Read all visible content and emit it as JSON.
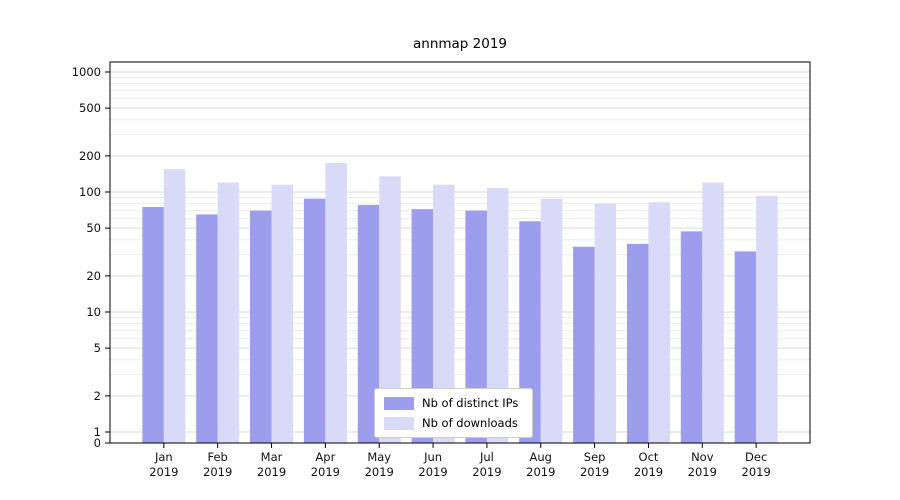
{
  "chart_data": {
    "type": "bar",
    "title": "annmap 2019",
    "categories": [
      "Jan",
      "Feb",
      "Mar",
      "Apr",
      "May",
      "Jun",
      "Jul",
      "Aug",
      "Sep",
      "Oct",
      "Nov",
      "Dec"
    ],
    "category_year": "2019",
    "series": [
      {
        "name": "Nb of distinct IPs",
        "color": "#9d9dee",
        "values": [
          75,
          65,
          70,
          88,
          78,
          72,
          70,
          57,
          35,
          37,
          47,
          32
        ]
      },
      {
        "name": "Nb of downloads",
        "color": "#d9d9f8",
        "values": [
          155,
          120,
          115,
          175,
          135,
          115,
          108,
          88,
          80,
          82,
          120,
          93
        ]
      }
    ],
    "yscale": "symlog",
    "yticks": [
      0,
      1,
      2,
      5,
      10,
      20,
      50,
      100,
      200,
      500,
      1000
    ],
    "ylim": [
      0,
      1000
    ],
    "grid": true,
    "legend_position": "lower center",
    "grid_major_color": "#d9d9d9",
    "grid_minor_color": "#ededed",
    "spine_color": "#000000"
  }
}
